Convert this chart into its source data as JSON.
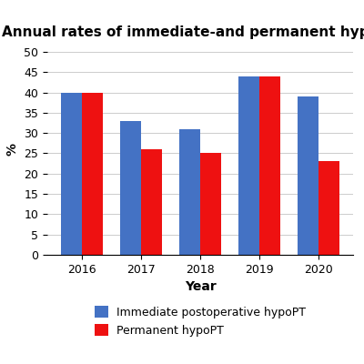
{
  "title": "Annual rates of immediate-and permanent hypoPT",
  "years": [
    2016,
    2017,
    2018,
    2019,
    2020
  ],
  "immediate": [
    40,
    33,
    31,
    44,
    39
  ],
  "permanent": [
    40,
    26,
    25,
    44,
    23
  ],
  "immediate_color": "#4472C4",
  "permanent_color": "#EE1111",
  "ylabel": "%",
  "xlabel": "Year",
  "ylim": [
    0,
    52
  ],
  "yticks": [
    0,
    5,
    10,
    15,
    20,
    25,
    30,
    35,
    40,
    45,
    50
  ],
  "legend_labels": [
    "Immediate postoperative hypoPT",
    "Permanent hypoPT"
  ],
  "bar_width": 0.35,
  "title_fontsize": 11,
  "label_fontsize": 10,
  "tick_fontsize": 9,
  "legend_fontsize": 9
}
